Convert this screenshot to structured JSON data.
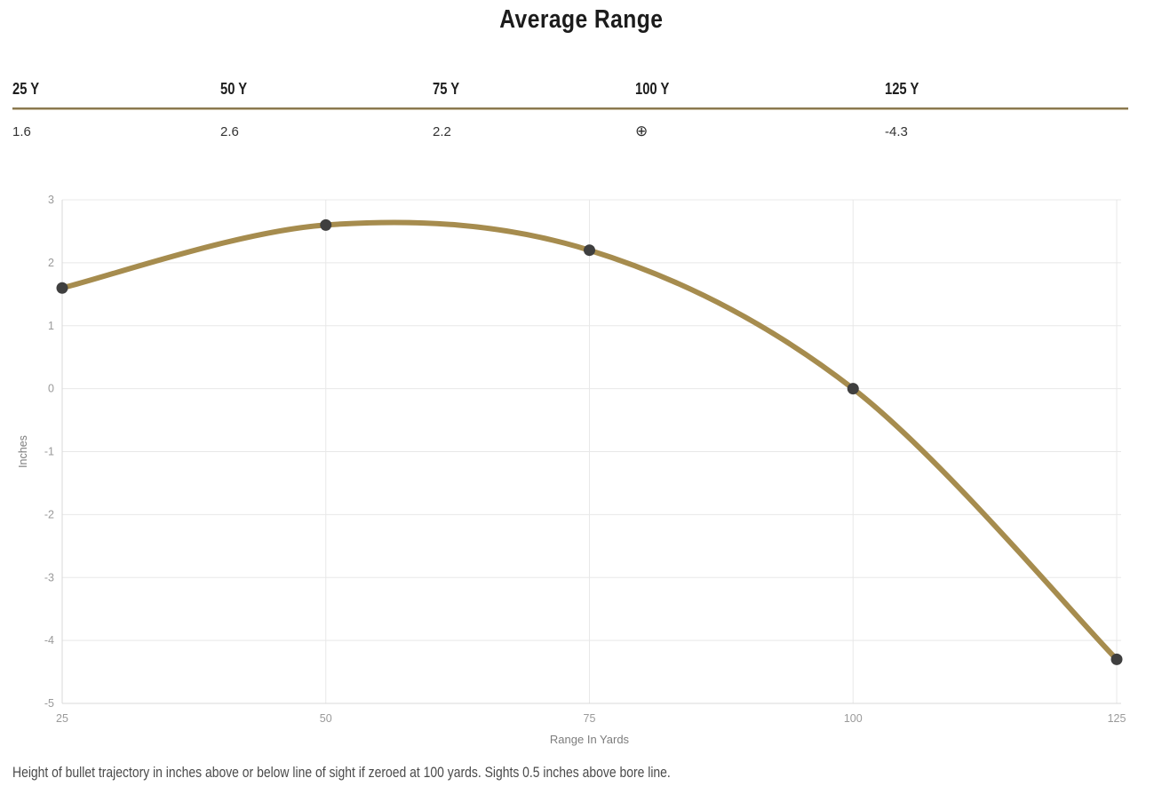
{
  "title": "Average Range",
  "table": {
    "columns": [
      {
        "label": "25 Y",
        "value": "1.6"
      },
      {
        "label": "50 Y",
        "value": "2.6"
      },
      {
        "label": "75 Y",
        "value": "2.2"
      },
      {
        "label": "100 Y",
        "value": "⊕",
        "icon": "zero-crosshair"
      },
      {
        "label": "125 Y",
        "value": "-4.3"
      }
    ]
  },
  "chart_data": {
    "type": "line",
    "x": [
      25,
      50,
      75,
      100,
      125
    ],
    "series": [
      {
        "name": "Average Range",
        "values": [
          1.6,
          2.6,
          2.2,
          0,
          -4.3
        ]
      }
    ],
    "xlabel": "Range In Yards",
    "ylabel": "Inches",
    "xlim": [
      25,
      125
    ],
    "ylim": [
      -5,
      3
    ],
    "xticks": [
      25,
      50,
      75,
      100,
      125
    ],
    "yticks": [
      3,
      2,
      1,
      0,
      -1,
      -2,
      -3,
      -4,
      -5
    ],
    "grid": true,
    "legend": false,
    "line_color": "#a68c4e",
    "point_color": "#3f3f3f",
    "grid_color": "#e8e8e8",
    "axis_color": "#d9d9d9",
    "tick_label_color": "#9a9a9a",
    "axis_label_color": "#7d7d7d"
  },
  "footnote": "Height of bullet trajectory in inches above or below line of sight if zeroed at 100 yards. Sights 0.5 inches above bore line."
}
